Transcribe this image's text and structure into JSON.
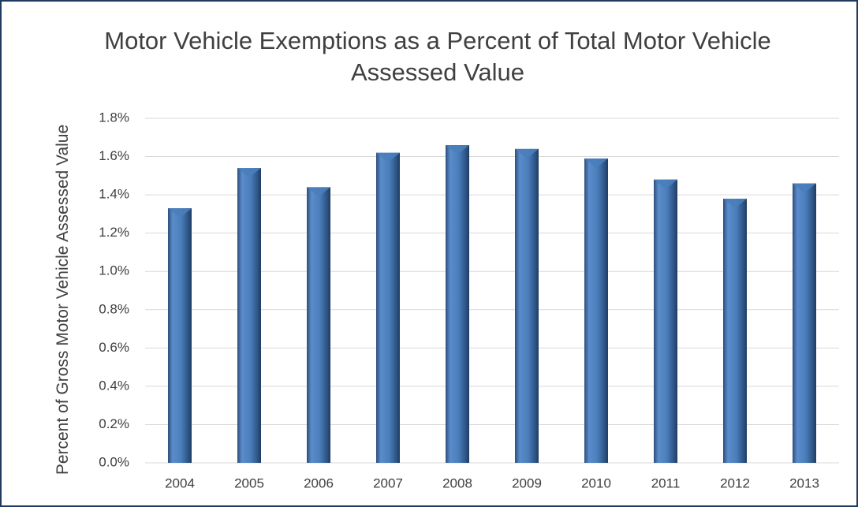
{
  "chart_data": {
    "type": "bar",
    "title": "Motor Vehicle Exemptions as a Percent of Total Motor Vehicle Assessed Value",
    "y_label": "Percent of Gross Motor Vehicle Assessed Value",
    "categories": [
      "2004",
      "2005",
      "2006",
      "2007",
      "2008",
      "2009",
      "2010",
      "2011",
      "2012",
      "2013"
    ],
    "values": [
      1.33,
      1.54,
      1.44,
      1.62,
      1.66,
      1.64,
      1.59,
      1.48,
      1.38,
      1.46
    ],
    "color": "#4a7ebb",
    "ylim": [
      0,
      1.8
    ],
    "yticks": [
      {
        "value": 0,
        "label": "0.0%"
      },
      {
        "value": 0.2,
        "label": "0.2%"
      },
      {
        "value": 0.4,
        "label": "0.4%"
      },
      {
        "value": 0.6,
        "label": "0.6%"
      },
      {
        "value": 0.8,
        "label": "0.8%"
      },
      {
        "value": 1.0,
        "label": "1.0%"
      },
      {
        "value": 1.2,
        "label": "1.2%"
      },
      {
        "value": 1.4,
        "label": "1.4%"
      },
      {
        "value": 1.6,
        "label": "1.6%"
      },
      {
        "value": 1.8,
        "label": "1.8%"
      }
    ],
    "grid": true
  }
}
